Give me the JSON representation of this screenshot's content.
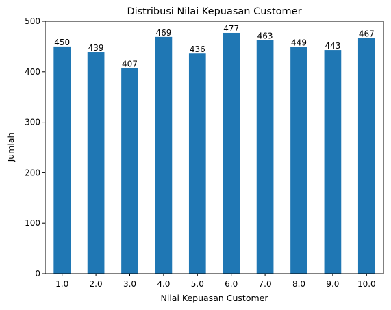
{
  "chart_data": {
    "type": "bar",
    "title": "Distribusi Nilai Kepuasan Customer",
    "xlabel": "Nilai Kepuasan Customer",
    "ylabel": "Jumlah",
    "categories": [
      "1.0",
      "2.0",
      "3.0",
      "4.0",
      "5.0",
      "6.0",
      "7.0",
      "8.0",
      "9.0",
      "10.0"
    ],
    "values": [
      450,
      439,
      407,
      469,
      436,
      477,
      463,
      449,
      443,
      467
    ],
    "data_labels": [
      "450",
      "439",
      "407",
      "469",
      "436",
      "477",
      "463",
      "449",
      "443",
      "467"
    ],
    "ylim": [
      0,
      500
    ],
    "yticks": [
      0,
      100,
      200,
      300,
      400,
      500
    ],
    "ytick_labels": [
      "0",
      "100",
      "200",
      "300",
      "400",
      "500"
    ],
    "bar_color": "#1f77b4",
    "grid": false,
    "legend": "none"
  }
}
